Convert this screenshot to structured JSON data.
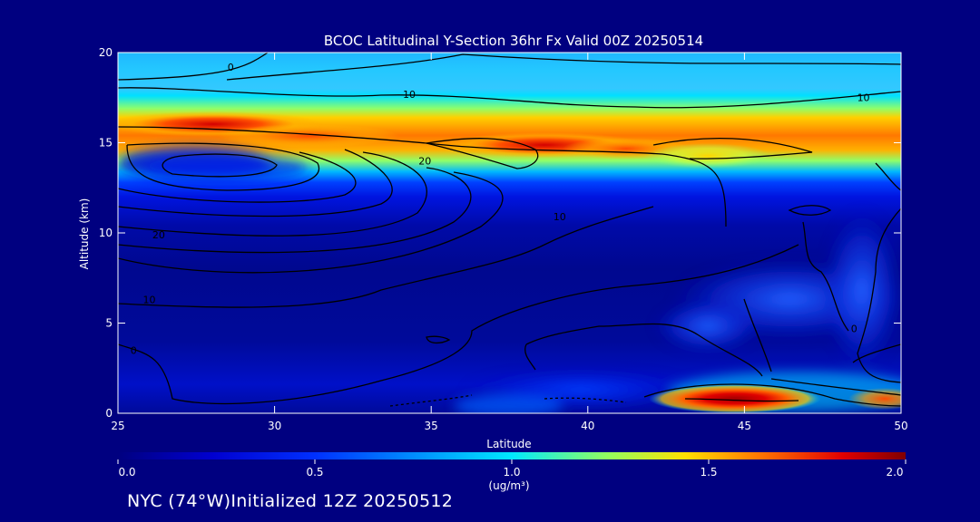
{
  "chart_data": {
    "type": "heatmap",
    "title": "BCOC Latitudinal Y-Section 36hr  Fx Valid 00Z 20250514",
    "xlabel": "Latitude",
    "ylabel": "Altitude (km)",
    "xlim": [
      25,
      50
    ],
    "ylim": [
      0,
      20
    ],
    "x_ticks": [
      "25",
      "30",
      "35",
      "40",
      "45",
      "50"
    ],
    "y_ticks": [
      "0",
      "5",
      "10",
      "15",
      "20"
    ],
    "colorbar": {
      "range": [
        0.0,
        2.0
      ],
      "ticks": [
        "0.0",
        "0.5",
        "1.0",
        "1.5",
        "2.0"
      ],
      "unit_label": "(ug/m³)"
    },
    "contour_labels": [
      {
        "text": "0",
        "lat": 28.6,
        "alt": 19.0
      },
      {
        "text": "10",
        "lat": 34.3,
        "alt": 17.5
      },
      {
        "text": "10",
        "lat": 48.8,
        "alt": 17.3
      },
      {
        "text": "20",
        "lat": 34.8,
        "alt": 13.8
      },
      {
        "text": "10",
        "lat": 39.1,
        "alt": 10.7
      },
      {
        "text": "20",
        "lat": 26.3,
        "alt": 9.7
      },
      {
        "text": "10",
        "lat": 26.0,
        "alt": 6.1
      },
      {
        "text": "0",
        "lat": 25.5,
        "alt": 3.3
      },
      {
        "text": "0",
        "lat": 48.5,
        "alt": 4.5
      }
    ],
    "highs": [
      {
        "lat": 27.5,
        "alt": 16.0,
        "value": 1.9
      },
      {
        "lat": 33.0,
        "alt": 15.0,
        "value": 1.55
      },
      {
        "lat": 37.5,
        "alt": 14.8,
        "value": 1.7
      },
      {
        "lat": 41.0,
        "alt": 14.5,
        "value": 1.55
      },
      {
        "lat": 44.5,
        "alt": 14.0,
        "value": 1.35
      },
      {
        "lat": 45.0,
        "alt": 0.9,
        "value": 2.0
      },
      {
        "lat": 49.5,
        "alt": 0.8,
        "value": 1.2
      }
    ]
  },
  "footer": "NYC (74°W)Initialized 12Z 20250512",
  "colors": {
    "background": "#000080",
    "colormap": [
      "#000080",
      "#0000c8",
      "#0028ff",
      "#0090ff",
      "#00e0ff",
      "#80ff80",
      "#ffe000",
      "#ff7000",
      "#e00000",
      "#800000"
    ]
  }
}
